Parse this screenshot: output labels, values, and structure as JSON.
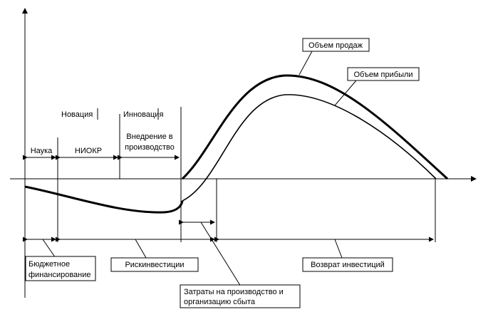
{
  "labels": {
    "sales": "Объем продаж",
    "profit": "Объем прибыли",
    "novation": "Новация",
    "innovation": "Инновация",
    "science": "Наука",
    "niokr": "НИОКР",
    "implementation_line1": "Внедрение в",
    "implementation_line2": "производство",
    "budget_line1": "Бюджетное",
    "budget_line2": "финансирование",
    "risk_investment": "Рискинвестиции",
    "return_investment": "Возврат инвестиций",
    "costs_line1": "Затраты на производство и",
    "costs_line2": "организацию сбыта"
  }
}
